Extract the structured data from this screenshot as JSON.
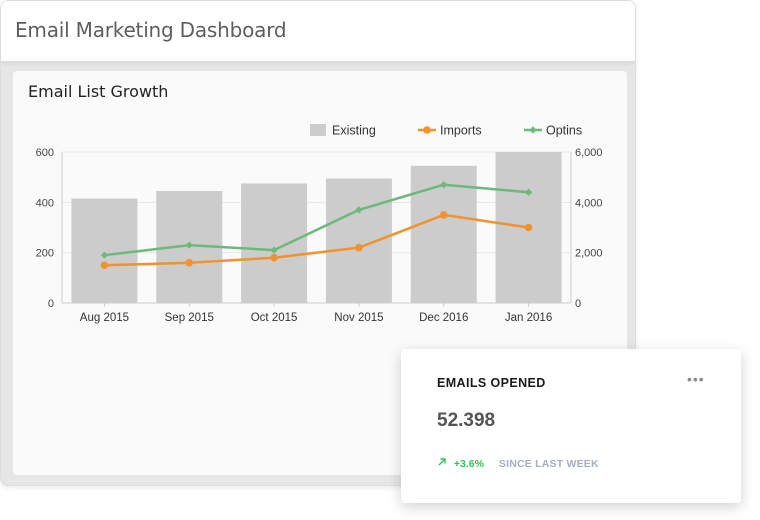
{
  "header": {
    "title": "Email Marketing Dashboard"
  },
  "card": {
    "title": "Email List Growth"
  },
  "chart_data": {
    "type": "bar",
    "categories": [
      "Aug 2015",
      "Sep 2015",
      "Oct 2015",
      "Nov 2015",
      "Dec 2016",
      "Jan 2016"
    ],
    "series": [
      {
        "name": "Existing",
        "type": "bar",
        "axis": "left",
        "color": "#cccccc",
        "values": [
          415,
          445,
          475,
          495,
          545,
          600
        ]
      },
      {
        "name": "Imports",
        "type": "line",
        "axis": "right",
        "color": "#f0922e",
        "values": [
          1500,
          1600,
          1800,
          2200,
          3500,
          3000
        ]
      },
      {
        "name": "Optins",
        "type": "line",
        "axis": "right",
        "color": "#6db87a",
        "values": [
          1900,
          2300,
          2100,
          3700,
          4700,
          4400
        ]
      }
    ],
    "y_left": {
      "ticks": [
        "0",
        "200",
        "400",
        "600"
      ],
      "range": [
        0,
        600
      ]
    },
    "y_right": {
      "ticks": [
        "0",
        "2,000",
        "4,000",
        "6,000"
      ],
      "range": [
        0,
        6000
      ]
    },
    "legend_position": "top-right",
    "grid": true
  },
  "stat": {
    "title": "EMAILS OPENED",
    "more_icon": "more-horizontal-icon",
    "value": "52.398",
    "trend_icon": "arrow-up-right-icon",
    "trend_value": "+3.6%",
    "trend_label": "SINCE LAST WEEK"
  }
}
